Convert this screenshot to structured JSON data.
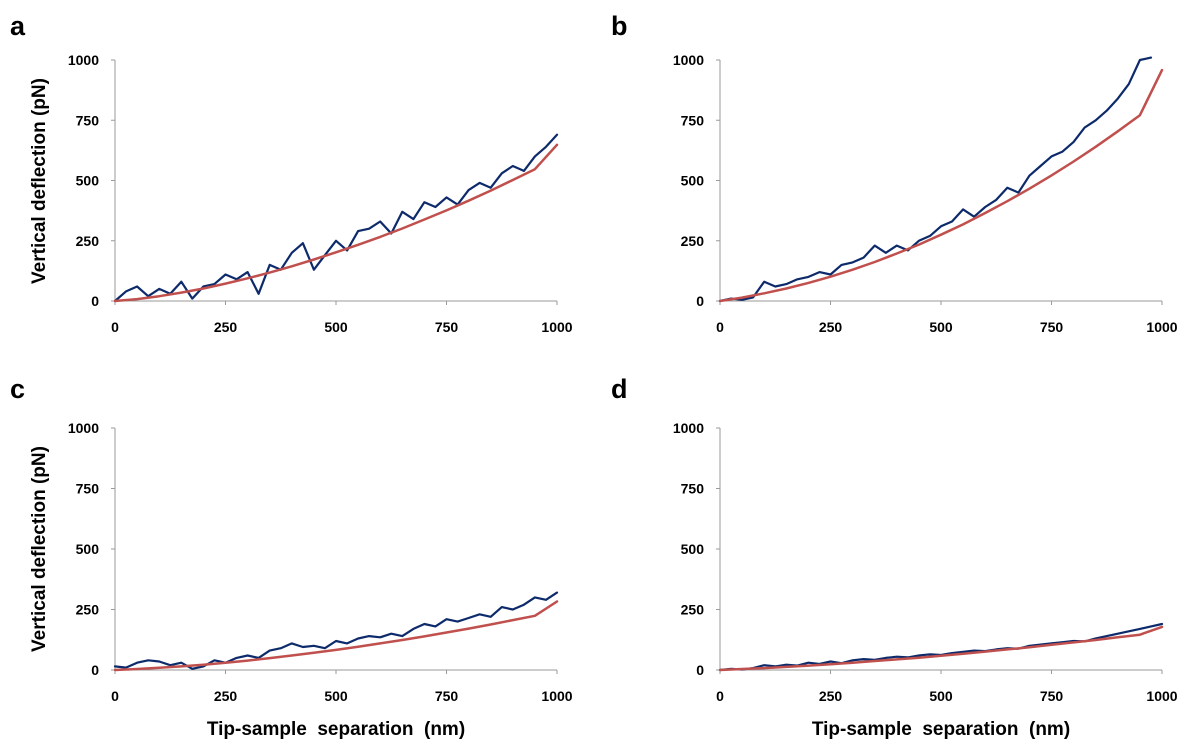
{
  "colors": {
    "measured": "#0d2a6b",
    "fit": "#c0504d",
    "axis": "#9a9a9a"
  },
  "chart_data": [
    {
      "panel": "a",
      "type": "line",
      "xlabel": "",
      "ylabel": "Vertical deflection (pN)",
      "xlim": [
        0,
        1000
      ],
      "ylim": [
        0,
        1000
      ],
      "xticks": [
        "0",
        "250",
        "500",
        "750",
        "1000"
      ],
      "yticks": [
        "0",
        "250",
        "500",
        "750",
        "1000"
      ],
      "grid": false,
      "series": [
        {
          "role": "measured",
          "x": [
            0,
            25,
            50,
            75,
            100,
            125,
            150,
            175,
            200,
            225,
            250,
            275,
            300,
            325,
            350,
            375,
            400,
            425,
            450,
            475,
            500,
            525,
            550,
            575,
            600,
            625,
            650,
            675,
            700,
            725,
            750,
            775,
            800,
            825,
            850,
            875,
            900,
            925,
            950,
            975,
            1000
          ],
          "y": [
            0,
            40,
            60,
            20,
            50,
            30,
            80,
            10,
            60,
            70,
            110,
            90,
            120,
            30,
            150,
            130,
            200,
            240,
            130,
            190,
            250,
            210,
            290,
            300,
            330,
            280,
            370,
            340,
            410,
            390,
            430,
            400,
            460,
            490,
            470,
            530,
            560,
            540,
            600,
            640,
            690
          ]
        },
        {
          "role": "fit",
          "x": [
            0,
            50,
            100,
            150,
            200,
            250,
            300,
            350,
            400,
            450,
            500,
            550,
            600,
            650,
            700,
            750,
            800,
            850,
            900,
            950,
            1000
          ],
          "y": [
            0,
            8,
            20,
            35,
            52,
            72,
            94,
            118,
            144,
            172,
            202,
            233,
            266,
            301,
            338,
            376,
            416,
            458,
            502,
            547,
            648
          ]
        }
      ]
    },
    {
      "panel": "b",
      "type": "line",
      "xlabel": "",
      "ylabel": "",
      "xlim": [
        0,
        1000
      ],
      "ylim": [
        0,
        1000
      ],
      "xticks": [
        "0",
        "250",
        "500",
        "750",
        "1000"
      ],
      "yticks": [
        "0",
        "250",
        "500",
        "750",
        "1000"
      ],
      "grid": false,
      "series": [
        {
          "role": "measured",
          "x": [
            0,
            25,
            50,
            75,
            100,
            125,
            150,
            175,
            200,
            225,
            250,
            275,
            300,
            325,
            350,
            375,
            400,
            425,
            450,
            475,
            500,
            525,
            550,
            575,
            600,
            625,
            650,
            675,
            700,
            725,
            750,
            775,
            800,
            825,
            850,
            875,
            900,
            925,
            950,
            975
          ],
          "y": [
            0,
            10,
            5,
            15,
            80,
            60,
            70,
            90,
            100,
            120,
            110,
            150,
            160,
            180,
            230,
            200,
            230,
            210,
            250,
            270,
            310,
            330,
            380,
            350,
            390,
            420,
            470,
            450,
            520,
            560,
            600,
            620,
            660,
            720,
            750,
            790,
            840,
            900,
            1000,
            1010
          ]
        },
        {
          "role": "fit",
          "x": [
            0,
            50,
            100,
            150,
            200,
            250,
            300,
            350,
            400,
            450,
            500,
            550,
            600,
            650,
            700,
            750,
            800,
            850,
            900,
            950,
            1000
          ],
          "y": [
            0,
            14,
            32,
            52,
            75,
            101,
            130,
            162,
            197,
            234,
            275,
            318,
            365,
            414,
            466,
            521,
            579,
            640,
            704,
            771,
            958
          ]
        }
      ]
    },
    {
      "panel": "c",
      "type": "line",
      "xlabel": "Tip-sample  separation  (nm)",
      "ylabel": "Vertical deflection (pN)",
      "xlim": [
        0,
        1000
      ],
      "ylim": [
        0,
        1000
      ],
      "xticks": [
        "0",
        "250",
        "500",
        "750",
        "1000"
      ],
      "yticks": [
        "0",
        "250",
        "500",
        "750",
        "1000"
      ],
      "grid": false,
      "series": [
        {
          "role": "measured",
          "x": [
            0,
            25,
            50,
            75,
            100,
            125,
            150,
            175,
            200,
            225,
            250,
            275,
            300,
            325,
            350,
            375,
            400,
            425,
            450,
            475,
            500,
            525,
            550,
            575,
            600,
            625,
            650,
            675,
            700,
            725,
            750,
            775,
            800,
            825,
            850,
            875,
            900,
            925,
            950,
            975,
            1000
          ],
          "y": [
            15,
            10,
            30,
            40,
            35,
            20,
            30,
            5,
            15,
            40,
            30,
            50,
            60,
            50,
            80,
            90,
            110,
            95,
            100,
            90,
            120,
            110,
            130,
            140,
            135,
            150,
            140,
            170,
            190,
            180,
            210,
            200,
            215,
            230,
            220,
            260,
            250,
            270,
            300,
            290,
            320
          ]
        },
        {
          "role": "fit",
          "x": [
            0,
            50,
            100,
            150,
            200,
            250,
            300,
            350,
            400,
            450,
            500,
            550,
            600,
            650,
            700,
            750,
            800,
            850,
            900,
            950,
            1000
          ],
          "y": [
            0,
            4,
            9,
            15,
            22,
            30,
            39,
            49,
            60,
            71,
            83,
            96,
            110,
            124,
            139,
            155,
            171,
            188,
            206,
            224,
            283
          ]
        }
      ]
    },
    {
      "panel": "d",
      "type": "line",
      "xlabel": "Tip-sample  separation  (nm)",
      "ylabel": "",
      "xlim": [
        0,
        1000
      ],
      "ylim": [
        0,
        1000
      ],
      "xticks": [
        "0",
        "250",
        "500",
        "750",
        "1000"
      ],
      "yticks": [
        "0",
        "250",
        "500",
        "750",
        "1000"
      ],
      "grid": false,
      "series": [
        {
          "role": "measured",
          "x": [
            0,
            25,
            50,
            75,
            100,
            125,
            150,
            175,
            200,
            225,
            250,
            275,
            300,
            325,
            350,
            375,
            400,
            425,
            450,
            475,
            500,
            525,
            550,
            575,
            600,
            625,
            650,
            675,
            700,
            725,
            750,
            775,
            800,
            825,
            850,
            875,
            900,
            925,
            950,
            975,
            1000
          ],
          "y": [
            0,
            5,
            2,
            8,
            20,
            15,
            22,
            18,
            30,
            25,
            35,
            28,
            40,
            45,
            42,
            50,
            55,
            52,
            60,
            65,
            62,
            70,
            75,
            80,
            78,
            85,
            90,
            88,
            100,
            105,
            110,
            115,
            120,
            118,
            130,
            140,
            150,
            160,
            170,
            180,
            190
          ]
        },
        {
          "role": "fit",
          "x": [
            0,
            50,
            100,
            150,
            200,
            250,
            300,
            350,
            400,
            450,
            500,
            550,
            600,
            650,
            700,
            750,
            800,
            850,
            900,
            950,
            1000
          ],
          "y": [
            0,
            4,
            8,
            13,
            18,
            24,
            30,
            37,
            44,
            51,
            59,
            67,
            76,
            85,
            94,
            104,
            114,
            124,
            135,
            146,
            178
          ]
        }
      ]
    }
  ]
}
